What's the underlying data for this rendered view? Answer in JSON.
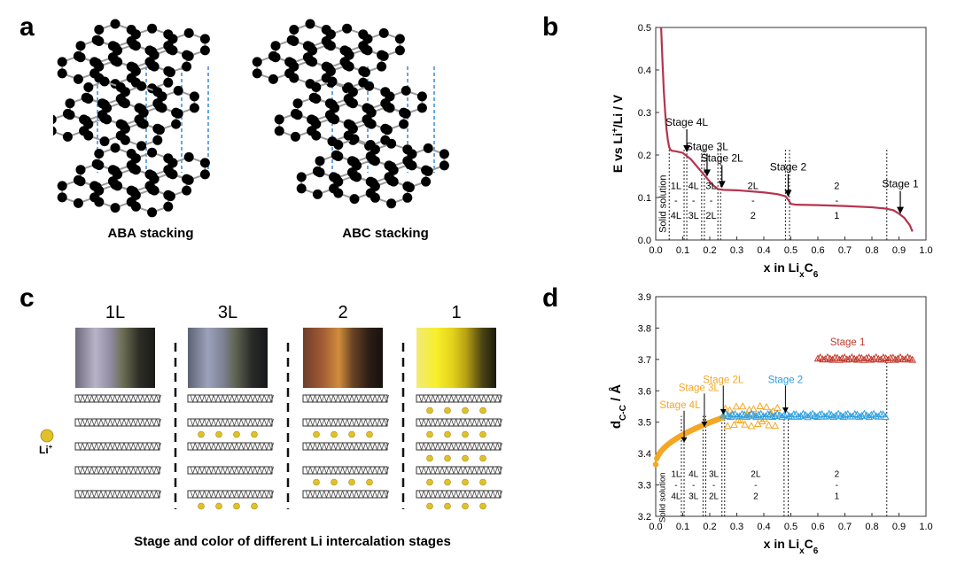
{
  "panels": {
    "a": {
      "label": "a",
      "caption_aba": "ABA stacking",
      "caption_abc": "ABC stacking"
    },
    "b": {
      "label": "b",
      "chart_data": {
        "type": "line",
        "title": "",
        "xlabel": "x in Li",
        "xlabel_sub_x": "x",
        "xlabel_tail": "C",
        "xlabel_sub_6": "6",
        "ylabel": "E vs Li",
        "ylabel_sup": "+",
        "ylabel_tail": "/Li / V",
        "xlim": [
          0,
          1.0
        ],
        "ylim": [
          0,
          0.5
        ],
        "xticks": [
          "0.0",
          "0.1",
          "0.2",
          "0.3",
          "0.4",
          "0.5",
          "0.6",
          "0.7",
          "0.8",
          "0.9",
          "1.0"
        ],
        "yticks": [
          "0.0",
          "0.1",
          "0.2",
          "0.3",
          "0.4",
          "0.5"
        ],
        "series": [
          {
            "name": "voltage",
            "color": "#b5334f",
            "x": [
              0.02,
              0.025,
              0.03,
              0.035,
              0.04,
              0.045,
              0.05,
              0.055,
              0.06,
              0.08,
              0.1,
              0.11,
              0.13,
              0.15,
              0.17,
              0.19,
              0.21,
              0.23,
              0.25,
              0.3,
              0.4,
              0.45,
              0.48,
              0.49,
              0.5,
              0.52,
              0.6,
              0.7,
              0.8,
              0.85,
              0.88,
              0.9,
              0.92,
              0.94,
              0.95
            ],
            "y": [
              0.5,
              0.42,
              0.35,
              0.3,
              0.26,
              0.235,
              0.218,
              0.212,
              0.21,
              0.208,
              0.205,
              0.2,
              0.19,
              0.175,
              0.16,
              0.145,
              0.13,
              0.12,
              0.118,
              0.117,
              0.112,
              0.108,
              0.103,
              0.095,
              0.085,
              0.083,
              0.082,
              0.08,
              0.077,
              0.074,
              0.07,
              0.062,
              0.052,
              0.035,
              0.02
            ]
          }
        ],
        "vlines": [
          0.05,
          0.105,
          0.115,
          0.17,
          0.18,
          0.23,
          0.24,
          0.48,
          0.495,
          0.855
        ],
        "arrows": [
          {
            "label": "Stage 4L",
            "x": 0.115,
            "y": 0.202
          },
          {
            "label": "Stage 3L",
            "x": 0.19,
            "y": 0.145
          },
          {
            "label": "Stage 2L",
            "x": 0.245,
            "y": 0.118
          },
          {
            "label": "Stage 2",
            "x": 0.49,
            "y": 0.097
          },
          {
            "label": "Stage 1",
            "x": 0.905,
            "y": 0.057
          }
        ],
        "regions": [
          {
            "label": "Solid solution",
            "x": 0.025,
            "vertical": true
          },
          {
            "label": "1L - 4L",
            "x": 0.075,
            "vertical": false
          },
          {
            "label": "4L - 3L",
            "x": 0.14,
            "vertical": false
          },
          {
            "label": "3L - 2L",
            "x": 0.205,
            "vertical": false
          },
          {
            "label": "2L - 2",
            "x": 0.36,
            "vertical": false
          },
          {
            "label": "2 - 1",
            "x": 0.67,
            "vertical": false
          }
        ]
      }
    },
    "c": {
      "label": "c",
      "stages": [
        "1L",
        "3L",
        "2",
        "1"
      ],
      "stage_colors": [
        "#3f3f5f",
        "#3a3f8f",
        "#e06a6a",
        "#c8a020"
      ],
      "li_label": "Li",
      "li_sup": "+",
      "caption": "Stage and color of different Li intercalation stages"
    },
    "d": {
      "label": "d",
      "chart_data": {
        "type": "scatter",
        "xlabel": "x in Li",
        "xlabel_sub_x": "x",
        "xlabel_tail": "C",
        "xlabel_sub_6": "6",
        "ylabel": "d",
        "ylabel_sub": "C-C",
        "ylabel_tail": " / Å",
        "xlim": [
          0,
          1.0
        ],
        "ylim": [
          3.2,
          3.9
        ],
        "xticks": [
          "0.0",
          "0.1",
          "0.2",
          "0.3",
          "0.4",
          "0.5",
          "0.6",
          "0.7",
          "0.8",
          "0.9",
          "1.0"
        ],
        "yticks": [
          "3.2",
          "3.3",
          "3.4",
          "3.5",
          "3.6",
          "3.7",
          "3.8",
          "3.9"
        ],
        "series": [
          {
            "name": "orange",
            "color": "#f5a623",
            "x_start": 0.0,
            "x_end": 0.25,
            "y_start": 3.365,
            "y_end": 3.515
          },
          {
            "name": "orange-scatter",
            "color": "#f5a623",
            "x_start": 0.25,
            "x_end": 0.45,
            "y_center": 3.52,
            "y_spread": 0.04
          },
          {
            "name": "blue",
            "color": "#2a9ee0",
            "x_start": 0.25,
            "x_end": 0.85,
            "y_center": 3.522,
            "y_spread": 0.01
          },
          {
            "name": "red",
            "color": "#c0392b",
            "x_start": 0.6,
            "x_end": 0.95,
            "y_center": 3.703,
            "y_spread": 0.01
          }
        ],
        "vlines": [
          0.095,
          0.105,
          0.175,
          0.185,
          0.245,
          0.255,
          0.475,
          0.49,
          0.855
        ],
        "annotations": [
          {
            "label": "Stage 4L",
            "color": "#f5a623"
          },
          {
            "label": "Stage 3L",
            "color": "#f5a623"
          },
          {
            "label": "Stage 2L",
            "color": "#f5a623"
          },
          {
            "label": "Stage 2",
            "color": "#2a9ee0"
          },
          {
            "label": "Stage 1",
            "color": "#c0392b"
          }
        ],
        "regions": [
          {
            "label": "Solid solution",
            "vertical": true
          },
          {
            "label": "1L - 4L",
            "vertical": false
          },
          {
            "label": "4L - 3L",
            "vertical": false
          },
          {
            "label": "3L - 2L",
            "vertical": false
          },
          {
            "label": "2L - 2",
            "vertical": false
          },
          {
            "label": "2 - 1",
            "vertical": false
          }
        ]
      }
    }
  }
}
